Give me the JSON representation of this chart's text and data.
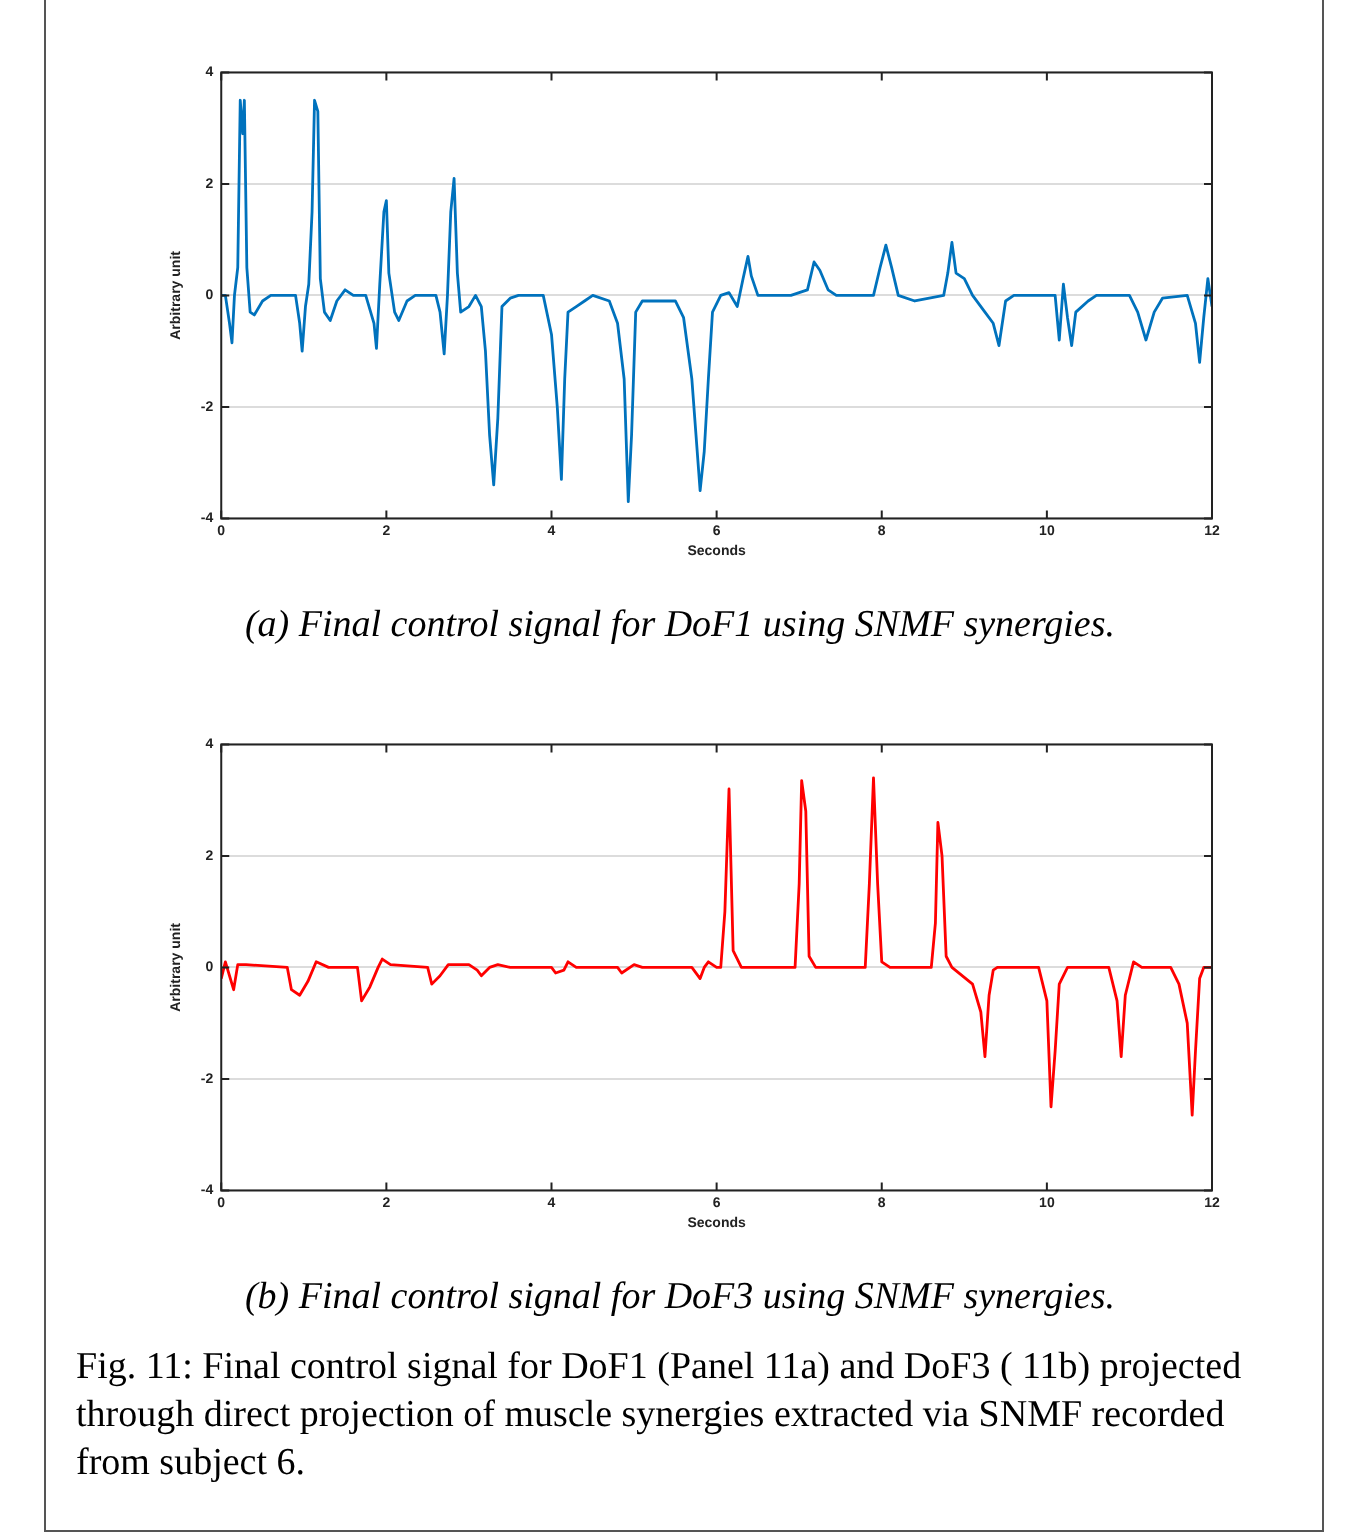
{
  "chart_data": [
    {
      "type": "line",
      "xlabel": "Seconds",
      "ylabel": "Arbitrary unit",
      "color": "#0072bd",
      "grid": "y",
      "xlim": [
        0,
        12
      ],
      "xticks": [
        0,
        2,
        4,
        6,
        8,
        10,
        12
      ],
      "ylim": [
        -4,
        4
      ],
      "yticks": [
        -4,
        -2,
        0,
        2,
        4
      ],
      "x": [
        0,
        0.05,
        0.1,
        0.13,
        0.16,
        0.2,
        0.23,
        0.26,
        0.28,
        0.31,
        0.35,
        0.4,
        0.5,
        0.6,
        0.9,
        0.95,
        0.98,
        1.02,
        1.06,
        1.1,
        1.13,
        1.17,
        1.2,
        1.25,
        1.32,
        1.4,
        1.5,
        1.6,
        1.75,
        1.85,
        1.88,
        1.92,
        1.97,
        2.0,
        2.03,
        2.1,
        2.15,
        2.25,
        2.35,
        2.6,
        2.65,
        2.7,
        2.74,
        2.78,
        2.82,
        2.86,
        2.9,
        3.0,
        3.08,
        3.15,
        3.2,
        3.25,
        3.3,
        3.35,
        3.4,
        3.5,
        3.6,
        3.9,
        4.0,
        4.07,
        4.12,
        4.16,
        4.2,
        4.3,
        4.4,
        4.5,
        4.7,
        4.8,
        4.88,
        4.93,
        4.97,
        5.02,
        5.1,
        5.5,
        5.6,
        5.7,
        5.75,
        5.8,
        5.85,
        5.9,
        5.95,
        6.05,
        6.15,
        6.25,
        6.32,
        6.38,
        6.42,
        6.5,
        6.9,
        7.0,
        7.1,
        7.18,
        7.25,
        7.35,
        7.45,
        7.9,
        7.98,
        8.05,
        8.12,
        8.2,
        8.4,
        8.75,
        8.8,
        8.85,
        8.9,
        9.0,
        9.1,
        9.25,
        9.35,
        9.42,
        9.5,
        9.6,
        10.1,
        10.15,
        10.2,
        10.25,
        10.3,
        10.35,
        10.5,
        10.6,
        11.0,
        11.1,
        11.2,
        11.3,
        11.4,
        11.7,
        11.8,
        11.85,
        11.9,
        11.95,
        12.0
      ],
      "values": [
        0,
        0,
        -0.5,
        -0.85,
        0,
        0.5,
        3.5,
        2.9,
        3.5,
        0.5,
        -0.3,
        -0.35,
        -0.1,
        0,
        0,
        -0.5,
        -1.0,
        -0.2,
        0.2,
        1.5,
        3.5,
        3.3,
        0.3,
        -0.3,
        -0.45,
        -0.1,
        0.1,
        0,
        0,
        -0.5,
        -0.95,
        0.2,
        1.5,
        1.7,
        0.4,
        -0.3,
        -0.45,
        -0.1,
        0,
        0,
        -0.3,
        -1.05,
        0,
        1.5,
        2.1,
        0.4,
        -0.3,
        -0.2,
        0,
        -0.2,
        -1.0,
        -2.5,
        -3.4,
        -2.2,
        -0.2,
        -0.05,
        0,
        0,
        -0.7,
        -2.0,
        -3.3,
        -1.5,
        -0.3,
        -0.2,
        -0.1,
        0,
        -0.1,
        -0.5,
        -1.5,
        -3.7,
        -2.5,
        -0.3,
        -0.1,
        -0.1,
        -0.4,
        -1.5,
        -2.5,
        -3.5,
        -2.8,
        -1.5,
        -0.3,
        0,
        0.05,
        -0.2,
        0.3,
        0.7,
        0.35,
        0,
        0,
        0.05,
        0.1,
        0.6,
        0.45,
        0.1,
        0,
        0,
        0.5,
        0.9,
        0.5,
        0,
        -0.1,
        0,
        0.4,
        0.95,
        0.4,
        0.3,
        0,
        -0.3,
        -0.5,
        -0.9,
        -0.1,
        0,
        0,
        -0.8,
        0.2,
        -0.4,
        -0.9,
        -0.3,
        -0.1,
        0,
        0,
        -0.3,
        -0.8,
        -0.3,
        -0.05,
        0,
        -0.5,
        -1.2,
        -0.4,
        0.3,
        -0.2
      ],
      "annotations": [
        "(a) Final control signal for DoF1 using SNMF synergies."
      ]
    },
    {
      "type": "line",
      "xlabel": "Seconds",
      "ylabel": "Arbitrary unit",
      "color": "#ff0000",
      "grid": "y",
      "xlim": [
        0,
        12
      ],
      "xticks": [
        0,
        2,
        4,
        6,
        8,
        10,
        12
      ],
      "ylim": [
        -4,
        4
      ],
      "yticks": [
        -4,
        -2,
        0,
        2,
        4
      ],
      "x": [
        0,
        0.05,
        0.1,
        0.15,
        0.2,
        0.3,
        0.8,
        0.85,
        0.95,
        1.05,
        1.15,
        1.3,
        1.65,
        1.7,
        1.8,
        1.9,
        1.95,
        2.05,
        2.5,
        2.55,
        2.65,
        2.75,
        3.0,
        3.1,
        3.15,
        3.25,
        3.35,
        3.5,
        4.0,
        4.05,
        4.15,
        4.2,
        4.3,
        4.8,
        4.85,
        5.0,
        5.1,
        5.7,
        5.8,
        5.85,
        5.9,
        6.0,
        6.05,
        6.1,
        6.15,
        6.2,
        6.3,
        6.95,
        7.0,
        7.03,
        7.08,
        7.12,
        7.2,
        7.8,
        7.85,
        7.9,
        7.95,
        8.0,
        8.1,
        8.6,
        8.65,
        8.68,
        8.73,
        8.78,
        8.85,
        9.1,
        9.2,
        9.25,
        9.3,
        9.35,
        9.4,
        9.9,
        10.0,
        10.05,
        10.1,
        10.15,
        10.25,
        10.75,
        10.85,
        10.9,
        10.95,
        11.05,
        11.15,
        11.5,
        11.6,
        11.7,
        11.76,
        11.8,
        11.85,
        11.9,
        12
      ],
      "values": [
        -0.2,
        0.1,
        -0.15,
        -0.4,
        0.05,
        0.05,
        0,
        -0.4,
        -0.5,
        -0.25,
        0.1,
        0,
        0,
        -0.6,
        -0.35,
        0,
        0.15,
        0.05,
        0,
        -0.3,
        -0.15,
        0.05,
        0.05,
        -0.05,
        -0.15,
        0,
        0.05,
        0,
        0,
        -0.1,
        -0.05,
        0.1,
        0,
        0,
        -0.1,
        0.05,
        0,
        0,
        -0.2,
        0,
        0.1,
        0,
        0,
        1.0,
        3.2,
        0.3,
        0,
        0,
        1.5,
        3.35,
        2.8,
        0.2,
        0,
        0,
        1.5,
        3.4,
        1.5,
        0.1,
        0,
        0,
        0.8,
        2.6,
        2.0,
        0.2,
        0,
        -0.3,
        -0.8,
        -1.6,
        -0.5,
        -0.05,
        0,
        0,
        -0.6,
        -2.5,
        -1.5,
        -0.3,
        0,
        0,
        -0.6,
        -1.6,
        -0.5,
        0.1,
        0,
        0,
        -0.3,
        -1.0,
        -2.65,
        -1.5,
        -0.2,
        0,
        0
      ],
      "annotations": [
        "(b) Final control signal for DoF3 using SNMF synergies.",
        "Fig. 11: Final control signal for DoF1 (Panel 11a) and DoF3 ( 11b) projected through direct projection of muscle synergies extracted via SNMF recorded from subject 6."
      ]
    }
  ]
}
